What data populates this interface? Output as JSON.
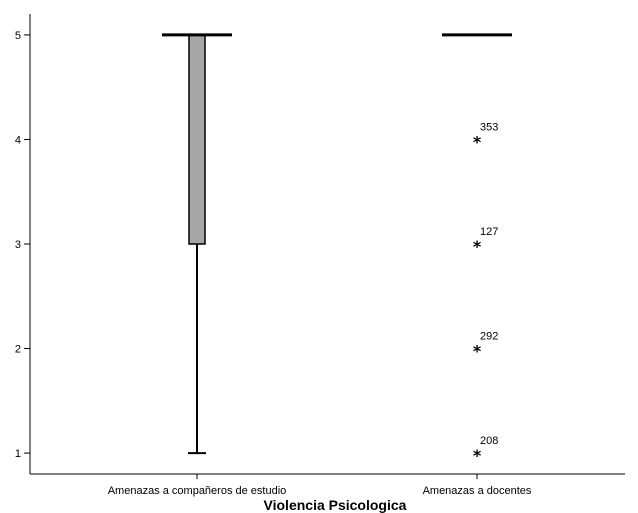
{
  "chart_data": {
    "type": "box",
    "title": "",
    "xlabel": "Violencia Psicologica",
    "ylabel": "",
    "ylim": [
      0.8,
      5.2
    ],
    "yticks": [
      1,
      2,
      3,
      4,
      5
    ],
    "grid": false,
    "categories": [
      "Amenazas a compañeros de estudio",
      "Amenazas a docentes"
    ],
    "boxes": [
      {
        "category": "Amenazas a compañeros de estudio",
        "min": 1,
        "q1": 3,
        "median": 5,
        "q3": 5,
        "max": 5,
        "outliers": []
      },
      {
        "category": "Amenazas a docentes",
        "min": 5,
        "q1": 5,
        "median": 5,
        "q3": 5,
        "max": 5,
        "outliers": [
          {
            "value": 4,
            "label": "353"
          },
          {
            "value": 3,
            "label": "127"
          },
          {
            "value": 2,
            "label": "292"
          },
          {
            "value": 1,
            "label": "208"
          }
        ]
      }
    ],
    "box_fill": "#a6a6a6",
    "line_color": "#000000"
  }
}
